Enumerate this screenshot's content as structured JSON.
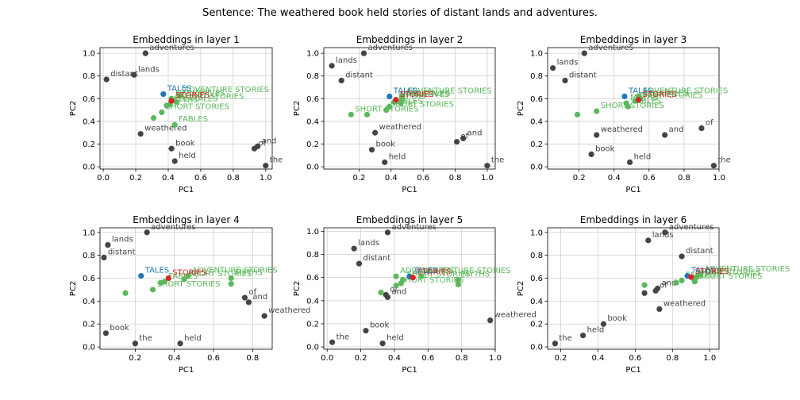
{
  "title": "Sentence: The weathered book held stories of distant lands and adventures.",
  "colors": {
    "context": "#444444",
    "target": "#d62728",
    "related": "#5cb85c",
    "related_text": "#5cb85c",
    "tales": "#1f77b4",
    "grid": "#d0d0d0"
  },
  "chart_data": [
    {
      "type": "scatter",
      "title": "Embeddings in layer 1",
      "xlabel": "PC1",
      "ylabel": "PC2",
      "xlim": [
        -0.02,
        1.04
      ],
      "ylim": [
        -0.02,
        1.05
      ],
      "xticks": [
        "0.0",
        "0.2",
        "0.4",
        "0.6",
        "0.8",
        "1.0"
      ],
      "xtick_values": [
        0,
        0.2,
        0.4,
        0.6,
        0.8,
        1.0
      ],
      "yticks": [
        "0.0",
        "0.2",
        "0.4",
        "0.6",
        "0.8",
        "1.0"
      ],
      "ytick_values": [
        0,
        0.2,
        0.4,
        0.6,
        0.8,
        1.0
      ],
      "points": [
        {
          "label": "adventures",
          "x": 0.26,
          "y": 1.0,
          "group": "context"
        },
        {
          "label": "lands",
          "x": 0.19,
          "y": 0.81,
          "group": "context"
        },
        {
          "label": "distant",
          "x": 0.02,
          "y": 0.77,
          "group": "context"
        },
        {
          "label": "weathered",
          "x": 0.23,
          "y": 0.29,
          "group": "context"
        },
        {
          "label": "book",
          "x": 0.42,
          "y": 0.16,
          "group": "context"
        },
        {
          "label": "held",
          "x": 0.44,
          "y": 0.05,
          "group": "context"
        },
        {
          "label": "of",
          "x": 0.93,
          "y": 0.16,
          "group": "context"
        },
        {
          "label": "and",
          "x": 0.95,
          "y": 0.18,
          "group": "context"
        },
        {
          "label": "the",
          "x": 1.0,
          "y": 0.01,
          "group": "context"
        },
        {
          "label": "TALES",
          "x": 0.37,
          "y": 0.64,
          "group": "tales"
        },
        {
          "label": "ADVENTURE STORIES",
          "x": 0.47,
          "y": 0.63,
          "group": "related"
        },
        {
          "label": "NARRATIVES",
          "x": 0.42,
          "y": 0.6,
          "group": "related"
        },
        {
          "label": "SHORT STORIES",
          "x": 0.45,
          "y": 0.57,
          "group": "related"
        },
        {
          "label": "MYTHS",
          "x": 0.39,
          "y": 0.54,
          "group": "related"
        },
        {
          "label": "FOLKTALES",
          "x": 0.41,
          "y": 0.55,
          "group": "related"
        },
        {
          "label": "SHORT STORIES",
          "x": 0.36,
          "y": 0.48,
          "group": "related"
        },
        {
          "label": "FABLES",
          "x": 0.44,
          "y": 0.37,
          "group": "related"
        },
        {
          "label": "",
          "x": 0.31,
          "y": 0.43,
          "group": "related"
        },
        {
          "label": "STORIES",
          "x": 0.42,
          "y": 0.58,
          "group": "target"
        }
      ]
    },
    {
      "type": "scatter",
      "title": "Embeddings in layer 2",
      "xlabel": "PC1",
      "ylabel": "PC2",
      "xlim": [
        -0.02,
        1.05
      ],
      "ylim": [
        -0.02,
        1.05
      ],
      "xticks": [
        "0.2",
        "0.4",
        "0.6",
        "0.8",
        "1.0"
      ],
      "xtick_values": [
        0.2,
        0.4,
        0.6,
        0.8,
        1.0
      ],
      "yticks": [
        "0.0",
        "0.2",
        "0.4",
        "0.6",
        "0.8",
        "1.0"
      ],
      "ytick_values": [
        0,
        0.2,
        0.4,
        0.6,
        0.8,
        1.0
      ],
      "points": [
        {
          "label": "adventures",
          "x": 0.23,
          "y": 1.0,
          "group": "context"
        },
        {
          "label": "lands",
          "x": 0.03,
          "y": 0.89,
          "group": "context"
        },
        {
          "label": "distant",
          "x": 0.09,
          "y": 0.76,
          "group": "context"
        },
        {
          "label": "weathered",
          "x": 0.3,
          "y": 0.3,
          "group": "context"
        },
        {
          "label": "book",
          "x": 0.28,
          "y": 0.15,
          "group": "context"
        },
        {
          "label": "held",
          "x": 0.36,
          "y": 0.04,
          "group": "context"
        },
        {
          "label": "of",
          "x": 0.81,
          "y": 0.22,
          "group": "context"
        },
        {
          "label": "and",
          "x": 0.85,
          "y": 0.25,
          "group": "context"
        },
        {
          "label": "the",
          "x": 1.0,
          "y": 0.01,
          "group": "context"
        },
        {
          "label": "TALES",
          "x": 0.39,
          "y": 0.62,
          "group": "tales"
        },
        {
          "label": "ADVENTURE STORIES",
          "x": 0.47,
          "y": 0.62,
          "group": "related"
        },
        {
          "label": "FOLKTALES",
          "x": 0.47,
          "y": 0.6,
          "group": "related"
        },
        {
          "label": "NARRATIVES",
          "x": 0.43,
          "y": 0.59,
          "group": "related"
        },
        {
          "label": "MYTHS",
          "x": 0.42,
          "y": 0.57,
          "group": "related"
        },
        {
          "label": "FABLES",
          "x": 0.39,
          "y": 0.53,
          "group": "related"
        },
        {
          "label": "SHORT STORIES",
          "x": 0.37,
          "y": 0.5,
          "group": "related"
        },
        {
          "label": "SHORT STORIES",
          "x": 0.15,
          "y": 0.46,
          "group": "related"
        },
        {
          "label": "",
          "x": 0.25,
          "y": 0.46,
          "group": "related"
        },
        {
          "label": "",
          "x": 0.46,
          "y": 0.56,
          "group": "related"
        },
        {
          "label": "STORIES",
          "x": 0.43,
          "y": 0.59,
          "group": "target"
        }
      ]
    },
    {
      "type": "scatter",
      "title": "Embeddings in layer 3",
      "xlabel": "PC1",
      "ylabel": "PC2",
      "xlim": [
        0.02,
        1.0
      ],
      "ylim": [
        -0.02,
        1.05
      ],
      "xticks": [
        "0.2",
        "0.4",
        "0.6",
        "0.8",
        "1.0"
      ],
      "xtick_values": [
        0.2,
        0.4,
        0.6,
        0.8,
        1.0
      ],
      "yticks": [
        "0.0",
        "0.2",
        "0.4",
        "0.6",
        "0.8",
        "1.0"
      ],
      "ytick_values": [
        0,
        0.2,
        0.4,
        0.6,
        0.8,
        1.0
      ],
      "points": [
        {
          "label": "adventures",
          "x": 0.23,
          "y": 1.0,
          "group": "context"
        },
        {
          "label": "lands",
          "x": 0.05,
          "y": 0.87,
          "group": "context"
        },
        {
          "label": "distant",
          "x": 0.12,
          "y": 0.76,
          "group": "context"
        },
        {
          "label": "weathered",
          "x": 0.3,
          "y": 0.28,
          "group": "context"
        },
        {
          "label": "book",
          "x": 0.27,
          "y": 0.11,
          "group": "context"
        },
        {
          "label": "held",
          "x": 0.49,
          "y": 0.04,
          "group": "context"
        },
        {
          "label": "and",
          "x": 0.69,
          "y": 0.28,
          "group": "context"
        },
        {
          "label": "of",
          "x": 0.9,
          "y": 0.34,
          "group": "context"
        },
        {
          "label": "the",
          "x": 0.97,
          "y": 0.01,
          "group": "context"
        },
        {
          "label": "TALES",
          "x": 0.46,
          "y": 0.62,
          "group": "tales"
        },
        {
          "label": "ADVENTURE STORIES",
          "x": 0.54,
          "y": 0.62,
          "group": "related"
        },
        {
          "label": "FOLKTALES",
          "x": 0.55,
          "y": 0.6,
          "group": "related"
        },
        {
          "label": "SHORT STORIES",
          "x": 0.52,
          "y": 0.58,
          "group": "related"
        },
        {
          "label": "MYTHS",
          "x": 0.47,
          "y": 0.56,
          "group": "related"
        },
        {
          "label": "FABLES",
          "x": 0.48,
          "y": 0.53,
          "group": "related"
        },
        {
          "label": "SHORT STORIES",
          "x": 0.3,
          "y": 0.49,
          "group": "related"
        },
        {
          "label": "",
          "x": 0.19,
          "y": 0.46,
          "group": "related"
        },
        {
          "label": "STORIES",
          "x": 0.54,
          "y": 0.59,
          "group": "target"
        }
      ]
    },
    {
      "type": "scatter",
      "title": "Embeddings in layer 4",
      "xlabel": "PC1",
      "ylabel": "PC2",
      "xlim": [
        0.02,
        0.9
      ],
      "ylim": [
        -0.02,
        1.04
      ],
      "xticks": [
        "0.2",
        "0.4",
        "0.6",
        "0.8"
      ],
      "xtick_values": [
        0.2,
        0.4,
        0.6,
        0.8
      ],
      "yticks": [
        "0.0",
        "0.2",
        "0.4",
        "0.6",
        "0.8",
        "1.0"
      ],
      "ytick_values": [
        0,
        0.2,
        0.4,
        0.6,
        0.8,
        1.0
      ],
      "points": [
        {
          "label": "adventures",
          "x": 0.26,
          "y": 1.0,
          "group": "context"
        },
        {
          "label": "lands",
          "x": 0.06,
          "y": 0.89,
          "group": "context"
        },
        {
          "label": "distant",
          "x": 0.04,
          "y": 0.78,
          "group": "context"
        },
        {
          "label": "book",
          "x": 0.05,
          "y": 0.12,
          "group": "context"
        },
        {
          "label": "the",
          "x": 0.2,
          "y": 0.03,
          "group": "context"
        },
        {
          "label": "held",
          "x": 0.43,
          "y": 0.03,
          "group": "context"
        },
        {
          "label": "of",
          "x": 0.76,
          "y": 0.43,
          "group": "context"
        },
        {
          "label": "and",
          "x": 0.78,
          "y": 0.39,
          "group": "context"
        },
        {
          "label": "weathered",
          "x": 0.86,
          "y": 0.27,
          "group": "context"
        },
        {
          "label": "TALES",
          "x": 0.23,
          "y": 0.62,
          "group": "tales"
        },
        {
          "label": "ADVENTURE STORIES",
          "x": 0.47,
          "y": 0.62,
          "group": "related"
        },
        {
          "label": "SHORT STORIES",
          "x": 0.45,
          "y": 0.59,
          "group": "related"
        },
        {
          "label": "MYTHS",
          "x": 0.69,
          "y": 0.6,
          "group": "related"
        },
        {
          "label": "FABLES",
          "x": 0.35,
          "y": 0.57,
          "group": "related"
        },
        {
          "label": "SHORT STORIES",
          "x": 0.29,
          "y": 0.5,
          "group": "related"
        },
        {
          "label": "",
          "x": 0.15,
          "y": 0.47,
          "group": "related"
        },
        {
          "label": "",
          "x": 0.33,
          "y": 0.56,
          "group": "related"
        },
        {
          "label": "",
          "x": 0.69,
          "y": 0.55,
          "group": "related"
        },
        {
          "label": "STORIES",
          "x": 0.37,
          "y": 0.6,
          "group": "target"
        }
      ]
    },
    {
      "type": "scatter",
      "title": "Embeddings in layer 5",
      "xlabel": "PC1",
      "ylabel": "PC2",
      "xlim": [
        -0.02,
        1.0
      ],
      "ylim": [
        -0.02,
        1.03
      ],
      "xticks": [
        "0.0",
        "0.2",
        "0.4",
        "0.6",
        "0.8",
        "1.0"
      ],
      "xtick_values": [
        0,
        0.2,
        0.4,
        0.6,
        0.8,
        1.0
      ],
      "yticks": [
        "0.0",
        "0.2",
        "0.4",
        "0.6",
        "0.8",
        "1.0"
      ],
      "ytick_values": [
        0,
        0.2,
        0.4,
        0.6,
        0.8,
        1.0
      ],
      "points": [
        {
          "label": "adventures",
          "x": 0.36,
          "y": 0.99,
          "group": "context"
        },
        {
          "label": "lands",
          "x": 0.16,
          "y": 0.85,
          "group": "context"
        },
        {
          "label": "distant",
          "x": 0.19,
          "y": 0.72,
          "group": "context"
        },
        {
          "label": "of",
          "x": 0.35,
          "y": 0.45,
          "group": "context"
        },
        {
          "label": "and",
          "x": 0.36,
          "y": 0.43,
          "group": "context"
        },
        {
          "label": "book",
          "x": 0.23,
          "y": 0.14,
          "group": "context"
        },
        {
          "label": "held",
          "x": 0.33,
          "y": 0.03,
          "group": "context"
        },
        {
          "label": "the",
          "x": 0.03,
          "y": 0.04,
          "group": "context"
        },
        {
          "label": "weathered",
          "x": 0.97,
          "y": 0.23,
          "group": "context"
        },
        {
          "label": "TALES",
          "x": 0.49,
          "y": 0.61,
          "group": "tales"
        },
        {
          "label": "ADVENTURE STORIES",
          "x": 0.56,
          "y": 0.61,
          "group": "related"
        },
        {
          "label": "ADVENTURES",
          "x": 0.41,
          "y": 0.61,
          "group": "related"
        },
        {
          "label": "SHORT STORIES",
          "x": 0.45,
          "y": 0.58,
          "group": "related"
        },
        {
          "label": "MYTHS",
          "x": 0.78,
          "y": 0.58,
          "group": "related"
        },
        {
          "label": "SHORT STORIES",
          "x": 0.41,
          "y": 0.53,
          "group": "related"
        },
        {
          "label": "",
          "x": 0.32,
          "y": 0.47,
          "group": "related"
        },
        {
          "label": "",
          "x": 0.44,
          "y": 0.55,
          "group": "related"
        },
        {
          "label": "",
          "x": 0.78,
          "y": 0.54,
          "group": "related"
        },
        {
          "label": "STORIES",
          "x": 0.51,
          "y": 0.6,
          "group": "target"
        }
      ]
    },
    {
      "type": "scatter",
      "title": "Embeddings in layer 6",
      "xlabel": "PC1",
      "ylabel": "PC2",
      "xlim": [
        0.13,
        1.05
      ],
      "ylim": [
        -0.02,
        1.04
      ],
      "xticks": [
        "0.2",
        "0.4",
        "0.6",
        "0.8",
        "1.0"
      ],
      "xtick_values": [
        0.2,
        0.4,
        0.6,
        0.8,
        1.0
      ],
      "yticks": [
        "0.0",
        "0.2",
        "0.4",
        "0.6",
        "0.8",
        "1.0"
      ],
      "ytick_values": [
        0,
        0.2,
        0.4,
        0.6,
        0.8,
        1.0
      ],
      "points": [
        {
          "label": "adventures",
          "x": 0.76,
          "y": 1.0,
          "group": "context"
        },
        {
          "label": "lands",
          "x": 0.67,
          "y": 0.93,
          "group": "context"
        },
        {
          "label": "distant",
          "x": 0.85,
          "y": 0.79,
          "group": "context"
        },
        {
          "label": "of",
          "x": 0.71,
          "y": 0.49,
          "group": "context"
        },
        {
          "label": "and",
          "x": 0.72,
          "y": 0.51,
          "group": "context"
        },
        {
          "label": "",
          "x": 0.65,
          "y": 0.47,
          "group": "context"
        },
        {
          "label": "weathered",
          "x": 0.73,
          "y": 0.33,
          "group": "context"
        },
        {
          "label": "book",
          "x": 0.43,
          "y": 0.2,
          "group": "context"
        },
        {
          "label": "held",
          "x": 0.32,
          "y": 0.1,
          "group": "context"
        },
        {
          "label": "the",
          "x": 0.17,
          "y": 0.03,
          "group": "context"
        },
        {
          "label": "TALES",
          "x": 0.88,
          "y": 0.62,
          "group": "tales"
        },
        {
          "label": "ADVENTURE STORIES",
          "x": 0.95,
          "y": 0.63,
          "group": "related"
        },
        {
          "label": "SHORT STORIES",
          "x": 0.91,
          "y": 0.6,
          "group": "related"
        },
        {
          "label": "MYTHS",
          "x": 0.93,
          "y": 0.61,
          "group": "related"
        },
        {
          "label": "FABLES",
          "x": 0.85,
          "y": 0.58,
          "group": "related"
        },
        {
          "label": "SHORT STORIES",
          "x": 0.92,
          "y": 0.57,
          "group": "related"
        },
        {
          "label": "",
          "x": 0.65,
          "y": 0.54,
          "group": "related"
        },
        {
          "label": "",
          "x": 0.82,
          "y": 0.56,
          "group": "related"
        },
        {
          "label": "STORIES",
          "x": 0.9,
          "y": 0.61,
          "group": "target"
        }
      ]
    }
  ]
}
